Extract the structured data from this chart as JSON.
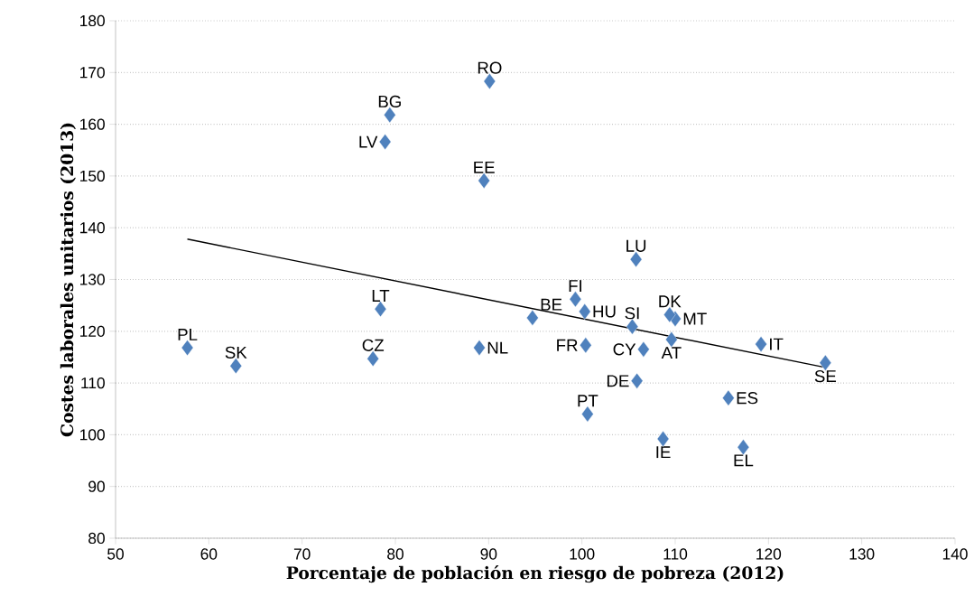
{
  "chart_data": {
    "type": "scatter",
    "xlabel": "Porcentaje de población en riesgo de pobreza (2012)",
    "ylabel": "Costes laborales unitarios (2013)",
    "xlim": [
      50,
      140
    ],
    "xticks": [
      50,
      60,
      70,
      80,
      90,
      100,
      110,
      120,
      130,
      140
    ],
    "ylim": [
      80,
      180
    ],
    "yticks": [
      80,
      90,
      100,
      110,
      120,
      130,
      140,
      150,
      160,
      170,
      180
    ],
    "grid": "y",
    "series": [
      {
        "color": "#4f81bd",
        "marker": "diamond",
        "x": [
          57.7,
          62.9,
          77.6,
          78.4,
          89.0,
          78.9,
          79.4,
          90.1,
          89.5,
          94.7,
          99.3,
          100.3,
          105.8,
          105.4,
          100.4,
          100.6,
          106.6,
          109.6,
          110.0,
          109.4,
          105.9,
          108.7,
          115.7,
          117.3,
          119.2,
          126.1
        ],
        "values": [
          116.8,
          113.3,
          114.7,
          124.3,
          116.8,
          156.6,
          161.8,
          168.3,
          149.1,
          122.6,
          126.2,
          123.8,
          133.9,
          120.9,
          117.3,
          104.0,
          116.5,
          118.4,
          122.4,
          123.2,
          110.4,
          99.2,
          107.1,
          97.6,
          117.5,
          113.9
        ]
      },
      {
        "type": "line",
        "color": "#000000",
        "marker": "none",
        "line_style": "solid",
        "x": [
          57.7,
          126.1
        ],
        "values": [
          137.8,
          113.0
        ]
      }
    ],
    "annotations": [
      {
        "text": "PL",
        "x": 57.7,
        "y": 116.8
      },
      {
        "text": "SK",
        "x": 62.9,
        "y": 113.3
      },
      {
        "text": "CZ",
        "x": 77.6,
        "y": 114.7
      },
      {
        "text": "LT",
        "x": 78.4,
        "y": 124.3
      },
      {
        "text": "NL",
        "x": 89.0,
        "y": 116.8
      },
      {
        "text": "LV",
        "x": 78.9,
        "y": 156.6
      },
      {
        "text": "BG",
        "x": 79.4,
        "y": 161.8
      },
      {
        "text": "RO",
        "x": 90.1,
        "y": 168.3
      },
      {
        "text": "EE",
        "x": 89.5,
        "y": 149.1
      },
      {
        "text": "BE",
        "x": 94.7,
        "y": 122.6
      },
      {
        "text": "FI",
        "x": 99.3,
        "y": 126.2
      },
      {
        "text": "HU",
        "x": 100.3,
        "y": 123.8
      },
      {
        "text": "LU",
        "x": 105.8,
        "y": 133.9
      },
      {
        "text": "SI",
        "x": 105.4,
        "y": 120.9
      },
      {
        "text": "FR",
        "x": 100.4,
        "y": 117.3
      },
      {
        "text": "PT",
        "x": 100.6,
        "y": 104.0
      },
      {
        "text": "CY",
        "x": 106.6,
        "y": 116.5
      },
      {
        "text": "AT",
        "x": 109.6,
        "y": 118.4
      },
      {
        "text": "MT",
        "x": 110.0,
        "y": 122.4
      },
      {
        "text": "DK",
        "x": 109.4,
        "y": 123.2
      },
      {
        "text": "DE",
        "x": 105.9,
        "y": 110.4
      },
      {
        "text": "IE",
        "x": 108.7,
        "y": 99.2
      },
      {
        "text": "ES",
        "x": 115.7,
        "y": 107.1
      },
      {
        "text": "EL",
        "x": 117.3,
        "y": 97.6
      },
      {
        "text": "IT",
        "x": 119.2,
        "y": 117.5
      },
      {
        "text": "SE",
        "x": 126.1,
        "y": 113.9
      }
    ]
  }
}
